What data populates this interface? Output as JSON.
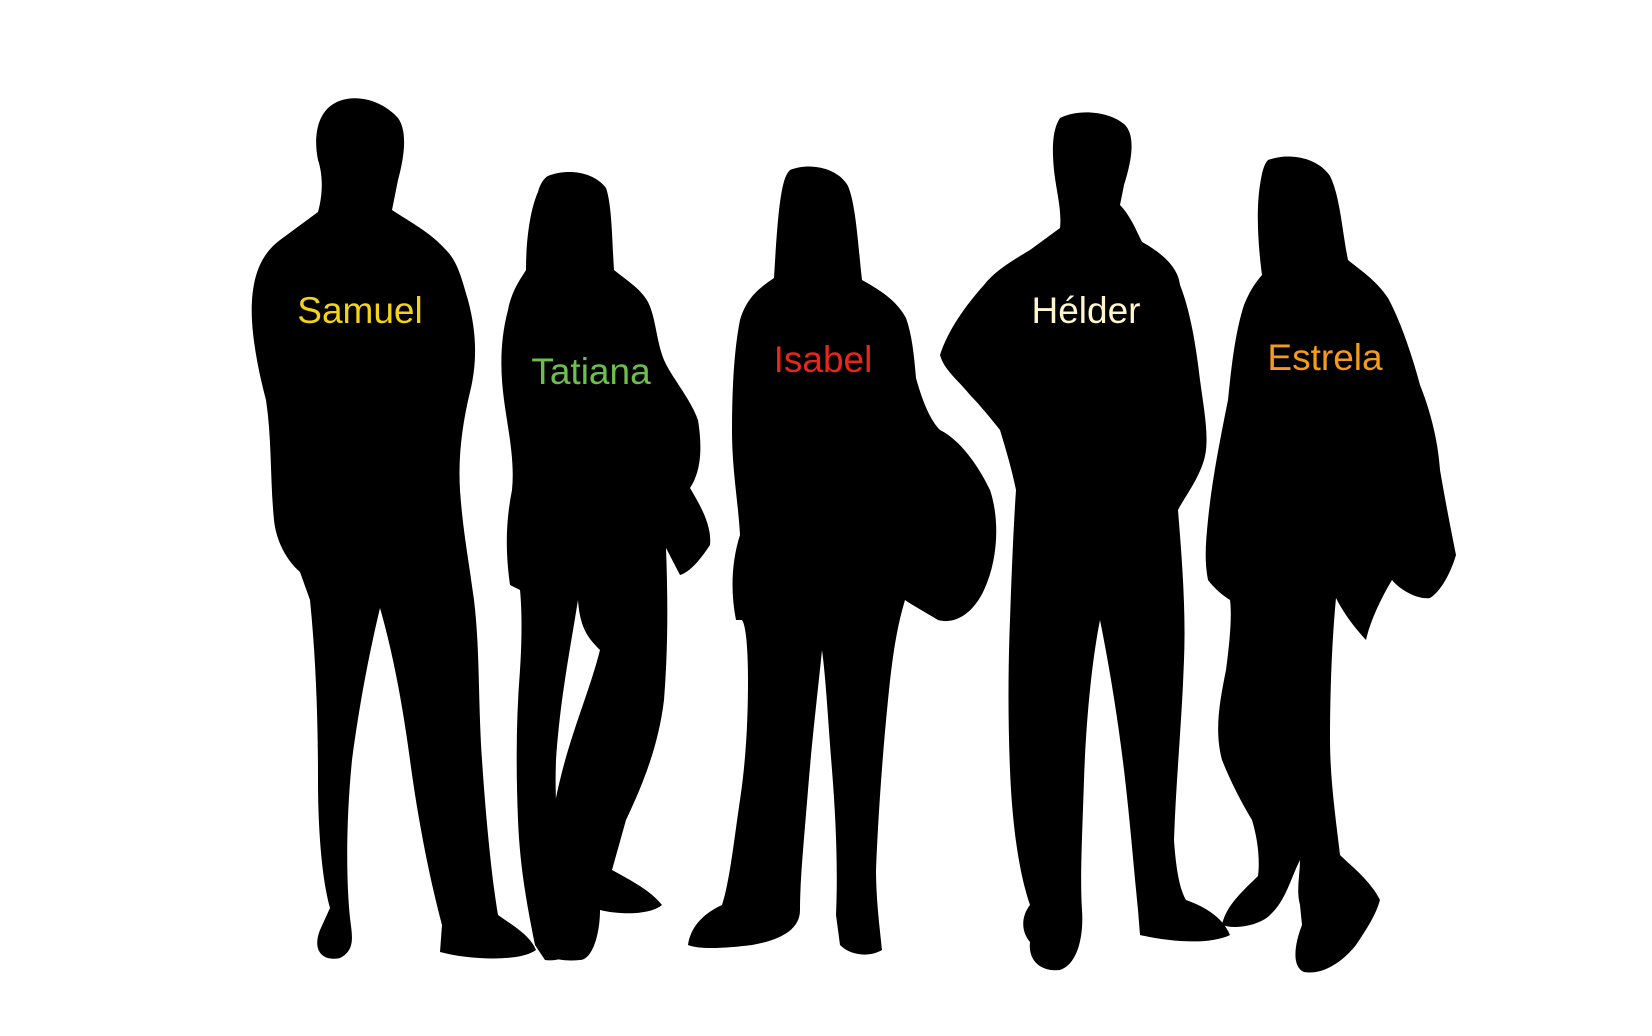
{
  "people": [
    {
      "name": "Samuel",
      "color": "#f2d21b"
    },
    {
      "name": "Tatiana",
      "color": "#6cbf4a"
    },
    {
      "name": "Isabel",
      "color": "#e8261b"
    },
    {
      "name": "Hélder",
      "color": "#fff6cc"
    },
    {
      "name": "Estrela",
      "color": "#f39b1e"
    }
  ]
}
